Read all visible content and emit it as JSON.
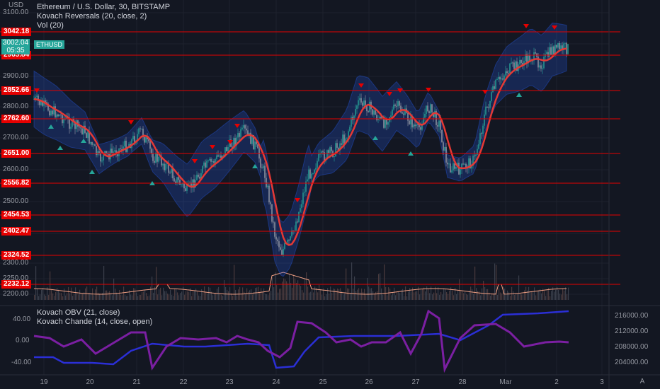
{
  "header": {
    "unit": "USD",
    "legend": [
      "Ethereum / U.S. Dollar, 30, BITSTAMP",
      "Kovach Reversals (20, close, 2)",
      "Vol (20)"
    ],
    "last_price": "3002.04",
    "countdown": "05:35",
    "symbol_tag": "ETHUSD"
  },
  "price_axis": {
    "ticks": [
      "3100.00",
      "3000.00",
      "2900.00",
      "2800.00",
      "2700.00",
      "2600.00",
      "2500.00",
      "2400.00",
      "2300.00",
      "2250.00",
      "2200.00"
    ]
  },
  "levels": [
    "3042.18",
    "2965.84",
    "2852.66",
    "2762.60",
    "2651.00",
    "2556.82",
    "2454.53",
    "2402.47",
    "2324.52",
    "2232.12"
  ],
  "lower_pane": {
    "legend": [
      "Kovach OBV (21, close)",
      "Kovach Chande (14, close, open)"
    ],
    "left_ticks": [
      "40.00",
      "0.00",
      "-40.00"
    ],
    "right_ticks": [
      "216000.00",
      "212000.00",
      "208000.00",
      "204000.00"
    ]
  },
  "time_axis": {
    "labels": [
      "19",
      "20",
      "21",
      "22",
      "23",
      "24",
      "25",
      "26",
      "27",
      "28",
      "Mar",
      "2",
      "3"
    ],
    "corner_button": "A"
  },
  "colors": {
    "background": "#131722",
    "level_line": "#e60000",
    "basis_line": "#e53935",
    "band_fill": "#2962ff",
    "candle_up": "#26a69a",
    "candle_down": "#9a9ea8",
    "buy_marker": "#26a69a",
    "sell_marker": "#e60000",
    "obv_line": "#2b2fd6",
    "chande_line": "#7b1fa2"
  },
  "chart_data": [
    {
      "type": "line",
      "title": "Ethereum / U.S. Dollar, 30, BITSTAMP",
      "x": [
        "19",
        "20",
        "21",
        "22",
        "23",
        "24",
        "25",
        "26",
        "27",
        "28",
        "Mar",
        "2"
      ],
      "ylim": [
        2180,
        3120
      ],
      "series": [
        {
          "name": "Kovach Reversals (20, close, 2)",
          "values": [
            2790,
            2730,
            2640,
            2630,
            2570,
            2700,
            2460,
            2640,
            2820,
            2690,
            2840,
            2990
          ]
        }
      ],
      "levels": [
        3042.18,
        2965.84,
        2852.66,
        2762.6,
        2651.0,
        2556.82,
        2454.53,
        2402.47,
        2324.52,
        2232.12
      ]
    },
    {
      "type": "line",
      "title": "",
      "x": [
        "19",
        "20",
        "21",
        "22",
        "23",
        "24",
        "25",
        "26",
        "27",
        "28",
        "Mar",
        "2"
      ],
      "series": [
        {
          "name": "Kovach OBV (21, close)",
          "values": [
            206000,
            205200,
            204800,
            206300,
            207700,
            207900,
            204800,
            208800,
            209000,
            208700,
            209100,
            215300
          ]
        },
        {
          "name": "Kovach Chande (14, close, open)",
          "values": [
            8,
            -10,
            -30,
            20,
            2,
            10,
            5,
            40,
            0,
            50,
            -30,
            -5
          ]
        }
      ],
      "ylim_left": [
        -60,
        60
      ],
      "ylim_right": [
        202000,
        218000
      ]
    }
  ]
}
